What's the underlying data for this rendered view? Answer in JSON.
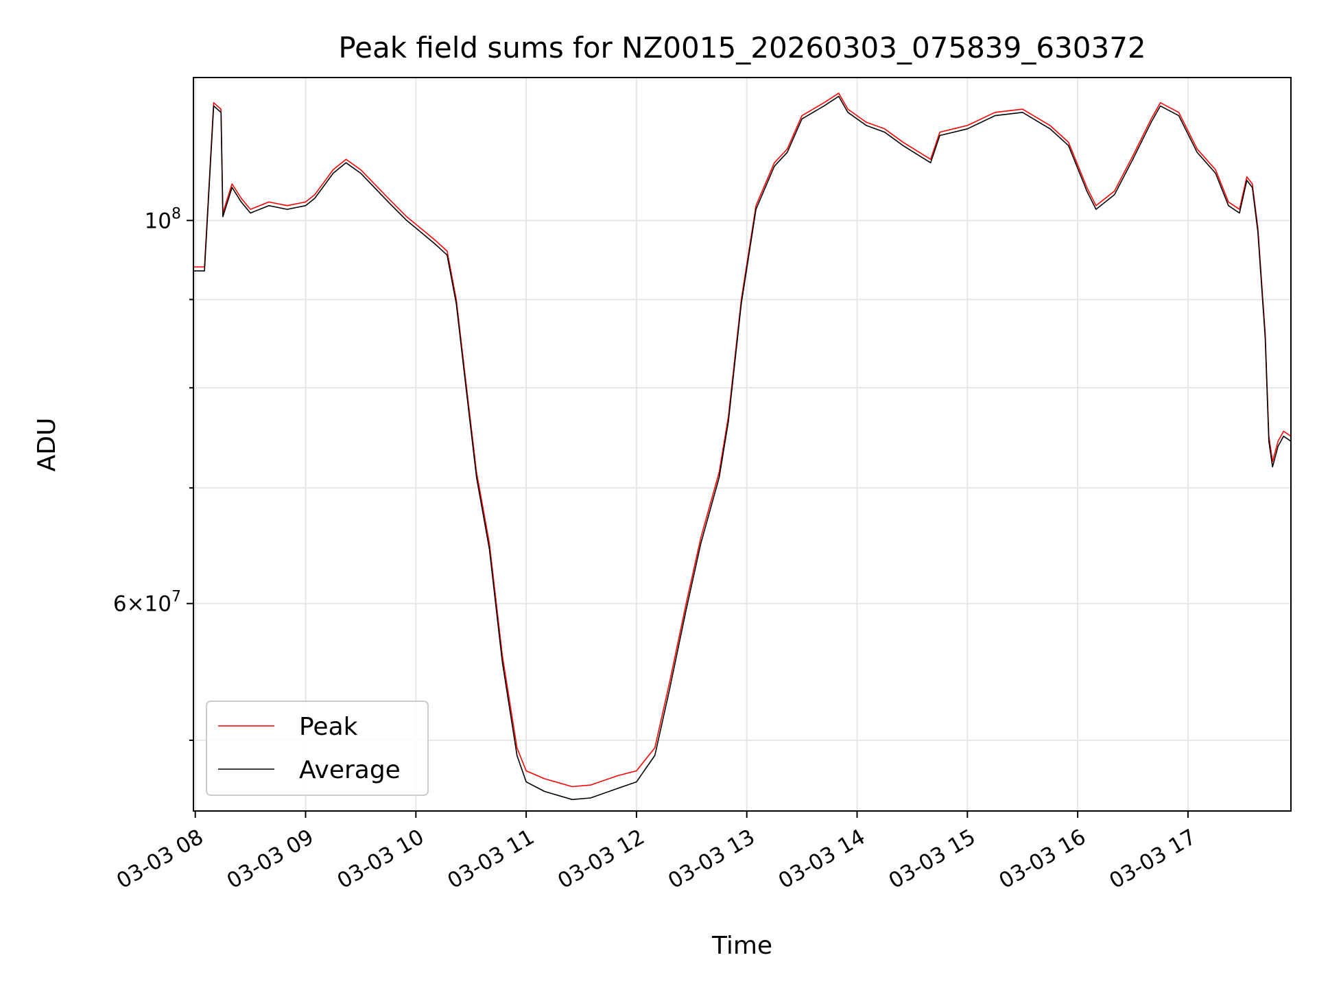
{
  "chart_data": {
    "type": "line",
    "title": "Peak field sums for NZ0015_20260303_075839_630372",
    "xlabel": "Time",
    "ylabel": "ADU",
    "y_scale": "log",
    "grid": true,
    "legend_placement": "lower-left",
    "xlim": [
      "2026-03-03 07:59",
      "2026-03-03 17:56"
    ],
    "ylim": [
      45500000,
      121000000
    ],
    "x_ticks": [
      "2026-03-03 08:00",
      "2026-03-03 09:00",
      "2026-03-03 10:00",
      "2026-03-03 11:00",
      "2026-03-03 12:00",
      "2026-03-03 13:00",
      "2026-03-03 14:00",
      "2026-03-03 15:00",
      "2026-03-03 16:00",
      "2026-03-03 17:00"
    ],
    "x_tick_labels": [
      "03-03 08",
      "03-03 09",
      "03-03 10",
      "03-03 11",
      "03-03 12",
      "03-03 13",
      "03-03 14",
      "03-03 15",
      "03-03 16",
      "03-03 17"
    ],
    "y_major_ticks": [
      60000000,
      100000000
    ],
    "y_major_labels": [
      {
        "mantissa": "6",
        "times": "×",
        "base": "10",
        "exp": "7"
      },
      {
        "mantissa": "",
        "times": "",
        "base": "10",
        "exp": "8"
      }
    ],
    "y_minor_ticks": [
      50000000,
      70000000,
      80000000,
      90000000
    ],
    "series": [
      {
        "name": "Peak",
        "color": "#ff0000",
        "points": [
          [
            "2026-03-03 07:59",
            94000000
          ],
          [
            "2026-03-03 08:05",
            94000000
          ],
          [
            "2026-03-03 08:10",
            117000000
          ],
          [
            "2026-03-03 08:14",
            116000000
          ],
          [
            "2026-03-03 08:15",
            101000000
          ],
          [
            "2026-03-03 08:20",
            105000000
          ],
          [
            "2026-03-03 08:25",
            103000000
          ],
          [
            "2026-03-03 08:30",
            101500000
          ],
          [
            "2026-03-03 08:40",
            102500000
          ],
          [
            "2026-03-03 08:50",
            102000000
          ],
          [
            "2026-03-03 09:00",
            102500000
          ],
          [
            "2026-03-03 09:05",
            103500000
          ],
          [
            "2026-03-03 09:15",
            107000000
          ],
          [
            "2026-03-03 09:22",
            108500000
          ],
          [
            "2026-03-03 09:30",
            107000000
          ],
          [
            "2026-03-03 09:45",
            103000000
          ],
          [
            "2026-03-03 09:55",
            100500000
          ],
          [
            "2026-03-03 10:10",
            97500000
          ],
          [
            "2026-03-03 10:17",
            96000000
          ],
          [
            "2026-03-03 10:22",
            90000000
          ],
          [
            "2026-03-03 10:27",
            81000000
          ],
          [
            "2026-03-03 10:33",
            71500000
          ],
          [
            "2026-03-03 10:40",
            65000000
          ],
          [
            "2026-03-03 10:47",
            56000000
          ],
          [
            "2026-03-03 10:55",
            49500000
          ],
          [
            "2026-03-03 11:00",
            48000000
          ],
          [
            "2026-03-03 11:10",
            47500000
          ],
          [
            "2026-03-03 11:25",
            47000000
          ],
          [
            "2026-03-03 11:35",
            47100000
          ],
          [
            "2026-03-03 11:50",
            47700000
          ],
          [
            "2026-03-03 12:00",
            48000000
          ],
          [
            "2026-03-03 12:10",
            49500000
          ],
          [
            "2026-03-03 12:18",
            54000000
          ],
          [
            "2026-03-03 12:27",
            60000000
          ],
          [
            "2026-03-03 12:35",
            65500000
          ],
          [
            "2026-03-03 12:45",
            71500000
          ],
          [
            "2026-03-03 12:50",
            77000000
          ],
          [
            "2026-03-03 12:57",
            90000000
          ],
          [
            "2026-03-03 13:05",
            102000000
          ],
          [
            "2026-03-03 13:15",
            108000000
          ],
          [
            "2026-03-03 13:22",
            110000000
          ],
          [
            "2026-03-03 13:30",
            115000000
          ],
          [
            "2026-03-03 13:42",
            117000000
          ],
          [
            "2026-03-03 13:50",
            118500000
          ],
          [
            "2026-03-03 13:55",
            116000000
          ],
          [
            "2026-03-03 14:05",
            114000000
          ],
          [
            "2026-03-03 14:15",
            113000000
          ],
          [
            "2026-03-03 14:25",
            111000000
          ],
          [
            "2026-03-03 14:40",
            108500000
          ],
          [
            "2026-03-03 14:45",
            112500000
          ],
          [
            "2026-03-03 15:00",
            113500000
          ],
          [
            "2026-03-03 15:15",
            115500000
          ],
          [
            "2026-03-03 15:30",
            116000000
          ],
          [
            "2026-03-03 15:45",
            113500000
          ],
          [
            "2026-03-03 15:55",
            111000000
          ],
          [
            "2026-03-03 16:05",
            104500000
          ],
          [
            "2026-03-03 16:10",
            102000000
          ],
          [
            "2026-03-03 16:20",
            104000000
          ],
          [
            "2026-03-03 16:30",
            109000000
          ],
          [
            "2026-03-03 16:40",
            114500000
          ],
          [
            "2026-03-03 16:45",
            117000000
          ],
          [
            "2026-03-03 16:55",
            115500000
          ],
          [
            "2026-03-03 17:05",
            110000000
          ],
          [
            "2026-03-03 17:15",
            107000000
          ],
          [
            "2026-03-03 17:22",
            102500000
          ],
          [
            "2026-03-03 17:28",
            101500000
          ],
          [
            "2026-03-03 17:32",
            106000000
          ],
          [
            "2026-03-03 17:35",
            105000000
          ],
          [
            "2026-03-03 17:38",
            99000000
          ],
          [
            "2026-03-03 17:42",
            86000000
          ],
          [
            "2026-03-03 17:44",
            75000000
          ],
          [
            "2026-03-03 17:46",
            72500000
          ],
          [
            "2026-03-03 17:49",
            74500000
          ],
          [
            "2026-03-03 17:52",
            75500000
          ],
          [
            "2026-03-03 17:56",
            75000000
          ]
        ]
      },
      {
        "name": "Average",
        "color": "#000000",
        "points": [
          [
            "2026-03-03 07:59",
            93500000
          ],
          [
            "2026-03-03 08:05",
            93500000
          ],
          [
            "2026-03-03 08:10",
            116500000
          ],
          [
            "2026-03-03 08:14",
            115500000
          ],
          [
            "2026-03-03 08:15",
            100500000
          ],
          [
            "2026-03-03 08:20",
            104500000
          ],
          [
            "2026-03-03 08:25",
            102500000
          ],
          [
            "2026-03-03 08:30",
            101000000
          ],
          [
            "2026-03-03 08:40",
            102000000
          ],
          [
            "2026-03-03 08:50",
            101500000
          ],
          [
            "2026-03-03 09:00",
            102000000
          ],
          [
            "2026-03-03 09:05",
            103000000
          ],
          [
            "2026-03-03 09:15",
            106500000
          ],
          [
            "2026-03-03 09:22",
            108000000
          ],
          [
            "2026-03-03 09:30",
            106500000
          ],
          [
            "2026-03-03 09:45",
            102500000
          ],
          [
            "2026-03-03 09:55",
            100000000
          ],
          [
            "2026-03-03 10:10",
            97000000
          ],
          [
            "2026-03-03 10:17",
            95500000
          ],
          [
            "2026-03-03 10:22",
            89500000
          ],
          [
            "2026-03-03 10:27",
            80500000
          ],
          [
            "2026-03-03 10:33",
            71000000
          ],
          [
            "2026-03-03 10:40",
            64500000
          ],
          [
            "2026-03-03 10:47",
            55500000
          ],
          [
            "2026-03-03 10:55",
            49000000
          ],
          [
            "2026-03-03 11:00",
            47300000
          ],
          [
            "2026-03-03 11:10",
            46700000
          ],
          [
            "2026-03-03 11:25",
            46200000
          ],
          [
            "2026-03-03 11:35",
            46300000
          ],
          [
            "2026-03-03 11:50",
            46900000
          ],
          [
            "2026-03-03 12:00",
            47300000
          ],
          [
            "2026-03-03 12:10",
            49000000
          ],
          [
            "2026-03-03 12:18",
            53500000
          ],
          [
            "2026-03-03 12:27",
            59500000
          ],
          [
            "2026-03-03 12:35",
            65000000
          ],
          [
            "2026-03-03 12:45",
            71000000
          ],
          [
            "2026-03-03 12:50",
            76500000
          ],
          [
            "2026-03-03 12:57",
            89500000
          ],
          [
            "2026-03-03 13:05",
            101500000
          ],
          [
            "2026-03-03 13:15",
            107500000
          ],
          [
            "2026-03-03 13:22",
            109500000
          ],
          [
            "2026-03-03 13:30",
            114500000
          ],
          [
            "2026-03-03 13:42",
            116500000
          ],
          [
            "2026-03-03 13:50",
            118000000
          ],
          [
            "2026-03-03 13:55",
            115500000
          ],
          [
            "2026-03-03 14:05",
            113500000
          ],
          [
            "2026-03-03 14:15",
            112500000
          ],
          [
            "2026-03-03 14:25",
            110500000
          ],
          [
            "2026-03-03 14:40",
            108000000
          ],
          [
            "2026-03-03 14:45",
            112000000
          ],
          [
            "2026-03-03 15:00",
            113000000
          ],
          [
            "2026-03-03 15:15",
            115000000
          ],
          [
            "2026-03-03 15:30",
            115500000
          ],
          [
            "2026-03-03 15:45",
            113000000
          ],
          [
            "2026-03-03 15:55",
            110500000
          ],
          [
            "2026-03-03 16:05",
            104000000
          ],
          [
            "2026-03-03 16:10",
            101500000
          ],
          [
            "2026-03-03 16:20",
            103500000
          ],
          [
            "2026-03-03 16:30",
            108500000
          ],
          [
            "2026-03-03 16:40",
            114000000
          ],
          [
            "2026-03-03 16:45",
            116500000
          ],
          [
            "2026-03-03 16:55",
            115000000
          ],
          [
            "2026-03-03 17:05",
            109500000
          ],
          [
            "2026-03-03 17:15",
            106500000
          ],
          [
            "2026-03-03 17:22",
            102000000
          ],
          [
            "2026-03-03 17:28",
            101000000
          ],
          [
            "2026-03-03 17:32",
            105500000
          ],
          [
            "2026-03-03 17:35",
            104500000
          ],
          [
            "2026-03-03 17:38",
            98500000
          ],
          [
            "2026-03-03 17:42",
            85500000
          ],
          [
            "2026-03-03 17:44",
            74500000
          ],
          [
            "2026-03-03 17:46",
            72000000
          ],
          [
            "2026-03-03 17:49",
            74000000
          ],
          [
            "2026-03-03 17:52",
            75000000
          ],
          [
            "2026-03-03 17:56",
            74500000
          ]
        ]
      }
    ]
  }
}
